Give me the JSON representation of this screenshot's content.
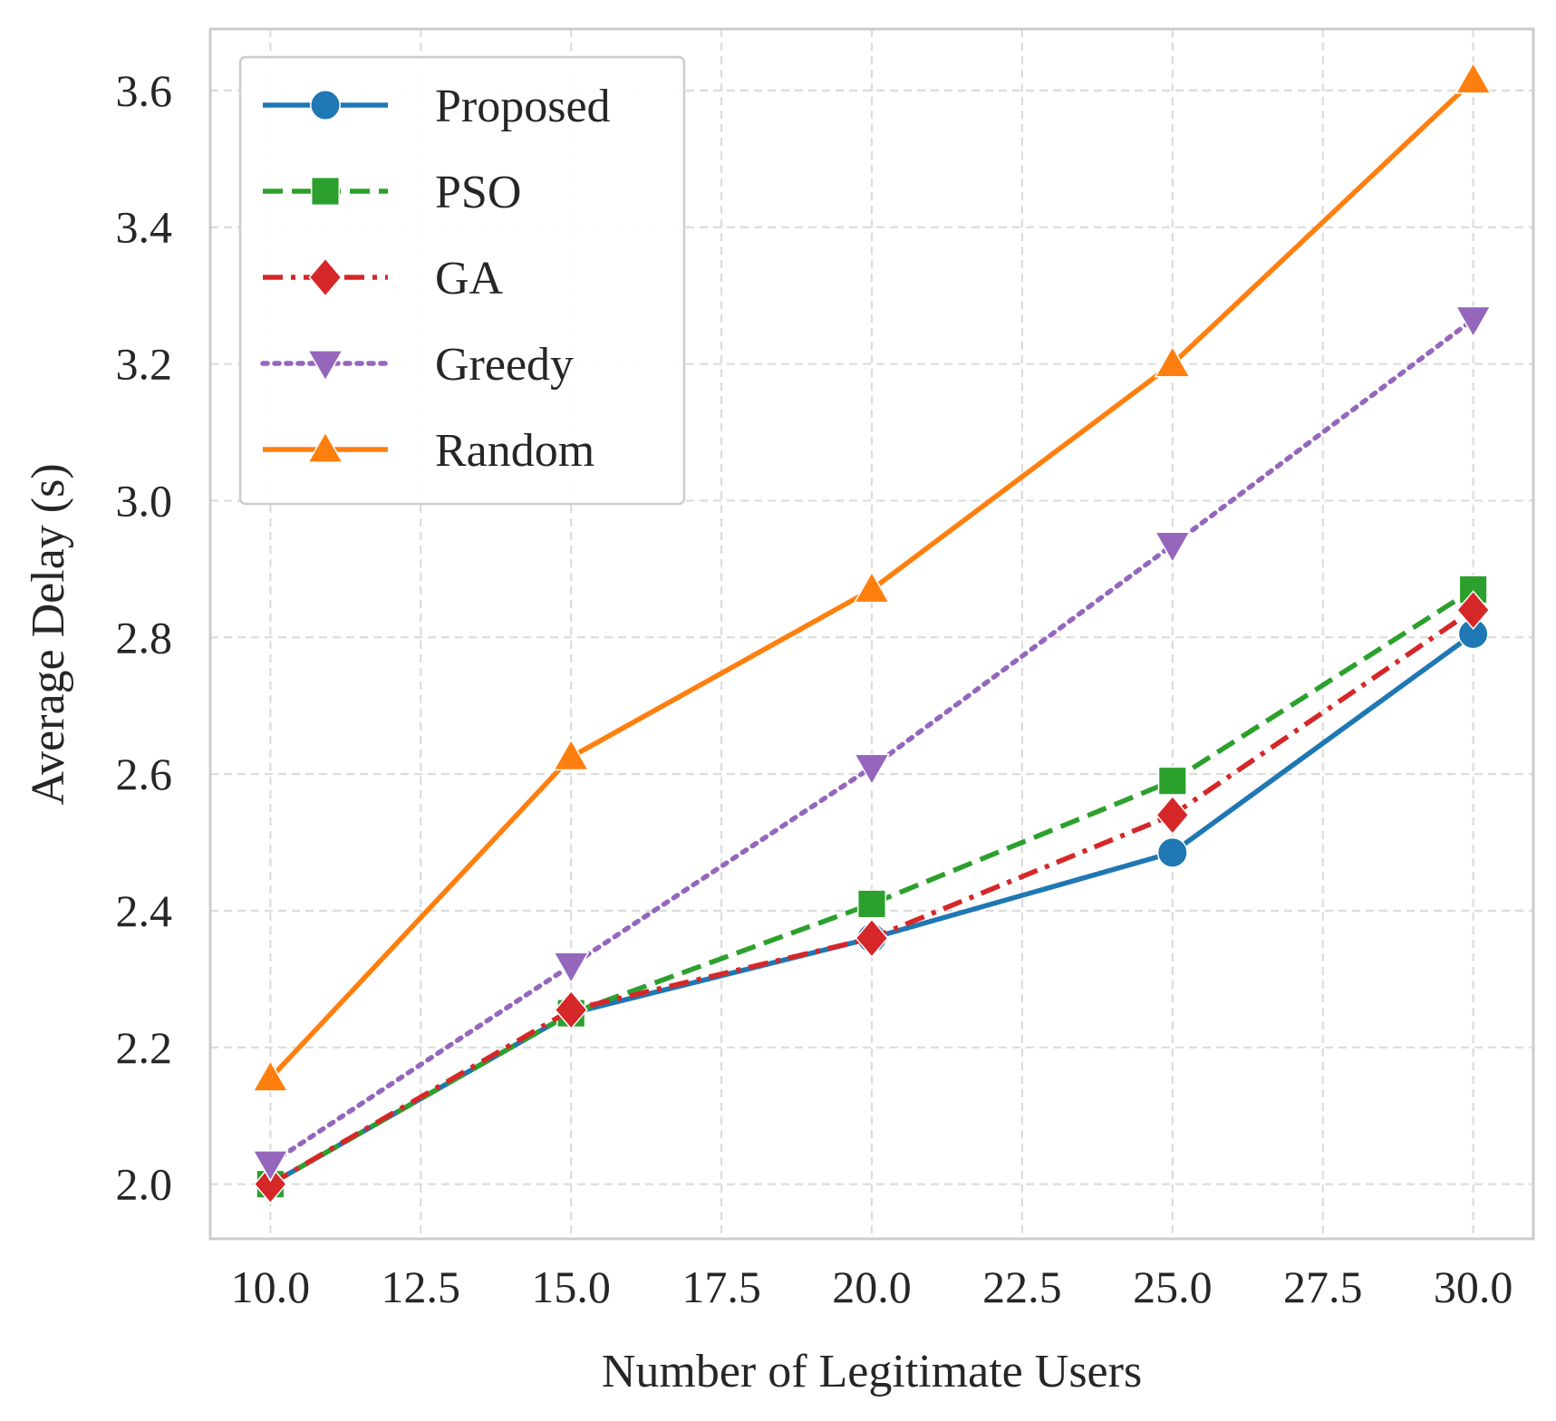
{
  "chart_data": {
    "type": "line",
    "title": "",
    "xlabel": "Number of Legitimate Users",
    "ylabel": "Average Delay (s)",
    "x": [
      10,
      15,
      20,
      25,
      30
    ],
    "xlim": [
      9.0,
      31.0
    ],
    "ylim": [
      1.92,
      3.69
    ],
    "xticks": [
      10,
      12.5,
      15,
      17.5,
      20,
      22.5,
      25,
      27.5,
      30
    ],
    "xtick_labels": [
      "10.0",
      "12.5",
      "15.0",
      "17.5",
      "20.0",
      "22.5",
      "25.0",
      "27.5",
      "30.0"
    ],
    "yticks": [
      2.0,
      2.2,
      2.4,
      2.6,
      2.8,
      3.0,
      3.2,
      3.4,
      3.6
    ],
    "ytick_labels": [
      "2.0",
      "2.2",
      "2.4",
      "2.6",
      "2.8",
      "3.0",
      "3.2",
      "3.4",
      "3.6"
    ],
    "grid": true,
    "legend_position": "top-left",
    "series": [
      {
        "name": "Proposed",
        "values": [
          2.0,
          2.25,
          2.36,
          2.485,
          2.805
        ],
        "color": "#1f77b4",
        "marker": "circle",
        "linestyle": "solid"
      },
      {
        "name": "PSO",
        "values": [
          2.0,
          2.25,
          2.41,
          2.59,
          2.87
        ],
        "color": "#2ca02c",
        "marker": "square",
        "linestyle": "dashed"
      },
      {
        "name": "GA",
        "values": [
          2.0,
          2.255,
          2.36,
          2.54,
          2.84
        ],
        "color": "#d62728",
        "marker": "diamond",
        "linestyle": "dashdot"
      },
      {
        "name": "Greedy",
        "values": [
          2.03,
          2.32,
          2.61,
          2.935,
          3.265
        ],
        "color": "#9467bd",
        "marker": "triangle-down",
        "linestyle": "dotted"
      },
      {
        "name": "Random",
        "values": [
          2.155,
          2.625,
          2.87,
          3.2,
          3.615
        ],
        "color": "#ff7f0e",
        "marker": "triangle-up",
        "linestyle": "solid"
      }
    ]
  }
}
